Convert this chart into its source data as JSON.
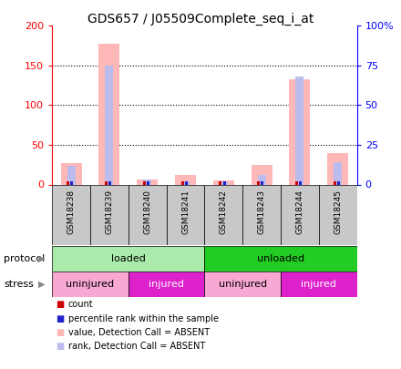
{
  "title": "GDS657 / J05509Complete_seq_i_at",
  "samples": [
    "GSM18238",
    "GSM18239",
    "GSM18240",
    "GSM18241",
    "GSM18242",
    "GSM18243",
    "GSM18244",
    "GSM18245"
  ],
  "pink_bars": [
    27,
    177,
    6,
    12,
    5,
    25,
    133,
    40
  ],
  "blue_bars": [
    12,
    75,
    3,
    2,
    2,
    6,
    68,
    14
  ],
  "red_counts": [
    2,
    2,
    1,
    1,
    1,
    2,
    2,
    2
  ],
  "blue_pcts": [
    6,
    6,
    2,
    1,
    1,
    4,
    5,
    7
  ],
  "ylim_left": [
    0,
    200
  ],
  "ylim_right": [
    0,
    100
  ],
  "yticks_left": [
    0,
    50,
    100,
    150,
    200
  ],
  "yticks_right": [
    0,
    25,
    50,
    75,
    100
  ],
  "ytick_labels_left": [
    "0",
    "50",
    "100",
    "150",
    "200"
  ],
  "ytick_labels_right": [
    "0",
    "25",
    "50",
    "75",
    "100%"
  ],
  "protocol_groups": [
    {
      "label": "loaded",
      "start": 0,
      "end": 4,
      "color": "#AAEAAA"
    },
    {
      "label": "unloaded",
      "start": 4,
      "end": 8,
      "color": "#22CC22"
    }
  ],
  "stress_groups": [
    {
      "label": "uninjured",
      "start": 0,
      "end": 2,
      "color": "#F9A8D4"
    },
    {
      "label": "injured",
      "start": 2,
      "end": 4,
      "color": "#DD22CC"
    },
    {
      "label": "uninjured",
      "start": 4,
      "end": 6,
      "color": "#F9A8D4"
    },
    {
      "label": "injured",
      "start": 6,
      "end": 8,
      "color": "#DD22CC"
    }
  ],
  "pink_color": "#FFB8B8",
  "blue_color": "#BBBBEE",
  "red_color": "#CC0000",
  "dark_blue_color": "#2222CC",
  "legend_items": [
    {
      "color": "#CC0000",
      "label": "count"
    },
    {
      "color": "#2222CC",
      "label": "percentile rank within the sample"
    },
    {
      "color": "#FFB8B8",
      "label": "value, Detection Call = ABSENT"
    },
    {
      "color": "#BBBBEE",
      "label": "rank, Detection Call = ABSENT"
    }
  ]
}
